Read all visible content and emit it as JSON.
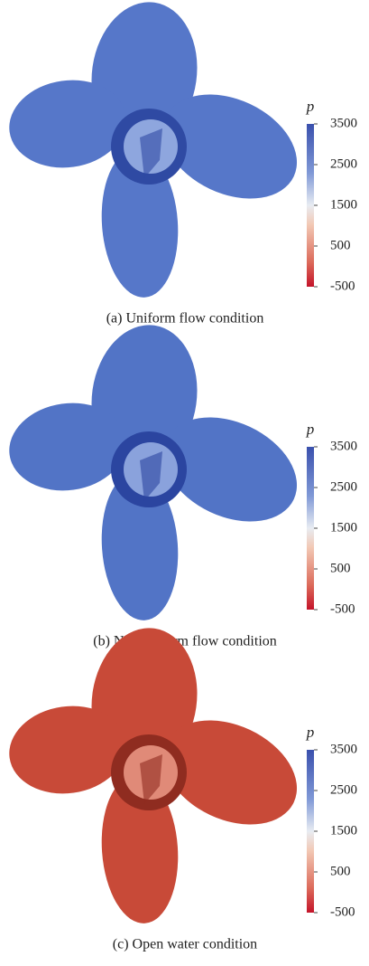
{
  "panels": [
    {
      "caption": "(a) Uniform flow condition",
      "colorbar": {
        "label": "p",
        "ticks": [
          3500,
          2500,
          1500,
          500,
          -500
        ]
      }
    },
    {
      "caption": "(b) Non uniform flow condition",
      "colorbar": {
        "label": "p",
        "ticks": [
          3500,
          2500,
          1500,
          500,
          -500
        ]
      }
    },
    {
      "caption": "(c)  Open water condition",
      "colorbar": {
        "label": "p",
        "ticks": [
          3500,
          2500,
          1500,
          500,
          -500
        ]
      }
    }
  ]
}
